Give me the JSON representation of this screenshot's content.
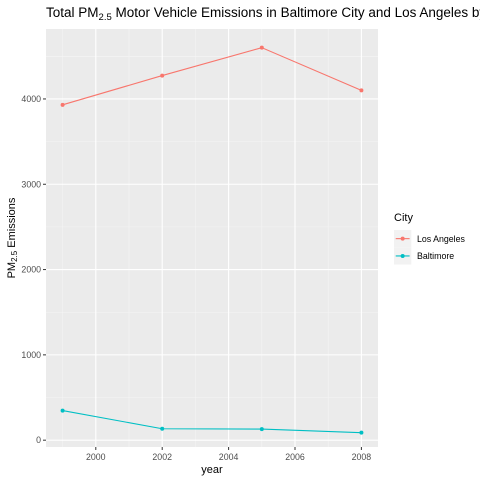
{
  "chart_data": {
    "type": "line",
    "title_prefix": "Total  PM",
    "title_subscript": "2.5",
    "title_suffix": "  Motor Vehicle Emissions in Baltimore City and Los Angeles by",
    "xlabel": "year",
    "ylabel_prefix": "PM",
    "ylabel_subscript": "2.5",
    "ylabel_suffix": " Emissions",
    "x": [
      1999,
      2002,
      2005,
      2008
    ],
    "xlim": [
      1998.5,
      2008.5
    ],
    "ylim": [
      -80,
      4820
    ],
    "x_ticks": [
      2000,
      2002,
      2004,
      2006,
      2008
    ],
    "x_tick_labels": [
      "2000",
      "2002",
      "2004",
      "2006",
      "2008"
    ],
    "y_ticks": [
      0,
      1000,
      2000,
      3000,
      4000
    ],
    "y_tick_labels": [
      "0",
      "1000",
      "2000",
      "3000",
      "4000"
    ],
    "grid": true,
    "legend": {
      "title": "City",
      "placement": "right"
    },
    "series": [
      {
        "name": "Los Angeles",
        "color": "#F8766D",
        "values": [
          3931,
          4274,
          4601,
          4101
        ]
      },
      {
        "name": "Baltimore",
        "color": "#00BFC4",
        "values": [
          347,
          134,
          130,
          88
        ]
      }
    ]
  }
}
